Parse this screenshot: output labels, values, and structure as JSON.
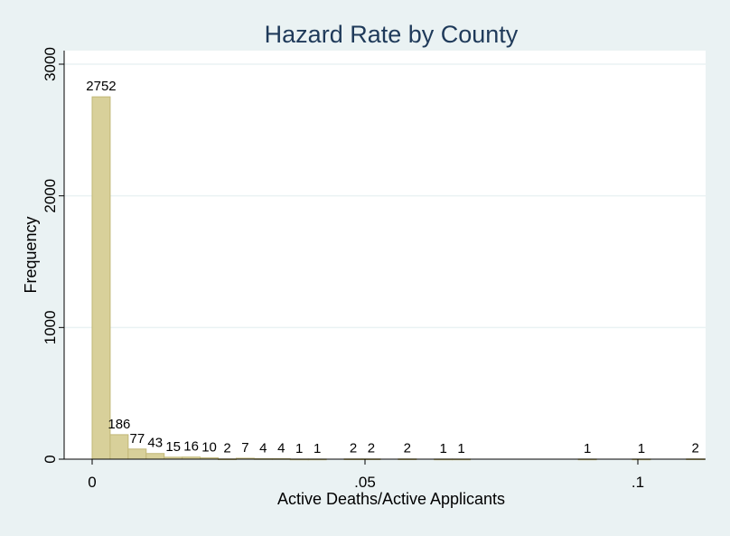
{
  "chart_data": {
    "type": "bar",
    "title": "Hazard Rate by County",
    "xlabel": "Active Deaths/Active Applicants",
    "ylabel": "Frequency",
    "xlim": [
      0,
      0.1128
    ],
    "ylim": [
      0,
      3000
    ],
    "x_ticks": [
      {
        "value": 0,
        "label": "0"
      },
      {
        "value": 0.05,
        "label": ".05"
      },
      {
        "value": 0.1,
        "label": ".1"
      }
    ],
    "y_ticks": [
      {
        "value": 0,
        "label": "0"
      },
      {
        "value": 1000,
        "label": "1000"
      },
      {
        "value": 2000,
        "label": "2000"
      },
      {
        "value": 3000,
        "label": "3000"
      }
    ],
    "grid": true,
    "bins": [
      {
        "start": 0.0,
        "end": 0.0033,
        "value": 2752,
        "label": "2752"
      },
      {
        "start": 0.0033,
        "end": 0.0066,
        "value": 186,
        "label": "186"
      },
      {
        "start": 0.0066,
        "end": 0.0099,
        "value": 77,
        "label": "77"
      },
      {
        "start": 0.0099,
        "end": 0.0132,
        "value": 43,
        "label": "43"
      },
      {
        "start": 0.0132,
        "end": 0.0165,
        "value": 15,
        "label": "15"
      },
      {
        "start": 0.0165,
        "end": 0.0198,
        "value": 16,
        "label": "16"
      },
      {
        "start": 0.0198,
        "end": 0.0231,
        "value": 10,
        "label": "10"
      },
      {
        "start": 0.0231,
        "end": 0.0264,
        "value": 2,
        "label": "2"
      },
      {
        "start": 0.0264,
        "end": 0.0297,
        "value": 7,
        "label": "7"
      },
      {
        "start": 0.0297,
        "end": 0.033,
        "value": 4,
        "label": "4"
      },
      {
        "start": 0.033,
        "end": 0.0363,
        "value": 4,
        "label": "4"
      },
      {
        "start": 0.0363,
        "end": 0.0396,
        "value": 1,
        "label": "1"
      },
      {
        "start": 0.0396,
        "end": 0.0429,
        "value": 1,
        "label": "1"
      },
      {
        "start": 0.0462,
        "end": 0.0495,
        "value": 2,
        "label": "2"
      },
      {
        "start": 0.0495,
        "end": 0.0528,
        "value": 2,
        "label": "2"
      },
      {
        "start": 0.0561,
        "end": 0.0594,
        "value": 2,
        "label": "2"
      },
      {
        "start": 0.0627,
        "end": 0.066,
        "value": 1,
        "label": "1"
      },
      {
        "start": 0.066,
        "end": 0.0693,
        "value": 1,
        "label": "1"
      },
      {
        "start": 0.0891,
        "end": 0.0924,
        "value": 1,
        "label": "1"
      },
      {
        "start": 0.099,
        "end": 0.1023,
        "value": 1,
        "label": "1"
      },
      {
        "start": 0.1089,
        "end": 0.1122,
        "value": 2,
        "label": "2"
      }
    ],
    "colors": {
      "background": "#eaf2f3",
      "plot_background": "#ffffff",
      "bar_fill": "#d8d09a",
      "bar_stroke": "#c2b878",
      "grid": "#eaf2f3",
      "axis": "#000000",
      "title": "#1f3a5a",
      "text": "#000000"
    }
  }
}
